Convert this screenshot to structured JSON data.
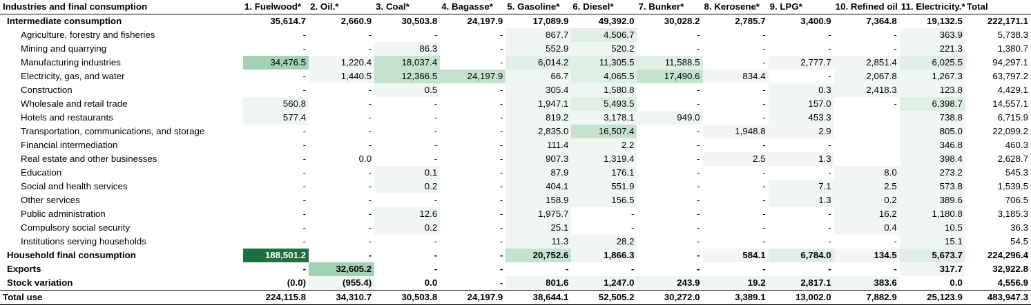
{
  "heat": {
    "max": 188501.2,
    "colors": [
      "#ffffff",
      "#f0f7f2",
      "#dfefe4",
      "#c4e2ce",
      "#a3d1b3",
      "#7fbd95",
      "#5aa878",
      "#37895a",
      "#1f7040"
    ]
  },
  "table": {
    "headers": [
      "Industries and final consumption",
      "1. Fuelwood*",
      "2. Oil.*",
      "3. Coal*",
      "4. Bagasse*",
      "5. Gasoline*",
      "6. Diesel*",
      "7. Bunker*",
      "8. Kerosene*",
      "9. LPG*",
      "10. Refined oil",
      "11. Electricity.*",
      "Total"
    ],
    "rows": [
      {
        "level": "main",
        "label": "Intermediate consumption",
        "cells": [
          "35,614.7",
          "2,660.9",
          "30,503.8",
          "24,197.9",
          "17,089.9",
          "49,392.0",
          "30,028.2",
          "2,785.7",
          "3,400.9",
          "7,364.8",
          "19,132.5",
          "222,171.1"
        ]
      },
      {
        "level": "sub",
        "label": "Agriculture, forestry and fisheries",
        "cells": [
          "-",
          "-",
          "-",
          "-",
          "867.7",
          "4,506.7",
          "-",
          "-",
          "-",
          "-",
          "363.9",
          "5,738.3"
        ]
      },
      {
        "level": "sub",
        "label": "Mining and quarrying",
        "cells": [
          "-",
          "-",
          "86.3",
          "-",
          "552.9",
          "520.2",
          "-",
          "-",
          "-",
          "-",
          "221.3",
          "1,380.7"
        ]
      },
      {
        "level": "sub",
        "label": "Manufacturing industries",
        "cells": [
          "34,476.5",
          "1,220.4",
          "18,037.4",
          "-",
          "6,014.2",
          "11,305.5",
          "11,588.5",
          "-",
          "2,777.7",
          "2,851.4",
          "6,025.5",
          "94,297.1"
        ]
      },
      {
        "level": "sub",
        "label": "Electricity, gas, and water",
        "cells": [
          "-",
          "1,440.5",
          "12,366.5",
          "24,197.9",
          "66.7",
          "4,065.5",
          "17,490.6",
          "834.4",
          "-",
          "2,067.8",
          "1,267.3",
          "63,797.2"
        ]
      },
      {
        "level": "sub",
        "label": "Construction",
        "cells": [
          "-",
          "-",
          "0.5",
          "-",
          "305.4",
          "1,580.8",
          "-",
          "-",
          "0.3",
          "2,418.3",
          "123.8",
          "4,429.1"
        ]
      },
      {
        "level": "sub",
        "label": "Wholesale and retail trade",
        "cells": [
          "560.8",
          "-",
          "-",
          "-",
          "1,947.1",
          "5,493.5",
          "-",
          "-",
          "157.0",
          "-",
          "6,398.7",
          "14,557.1"
        ]
      },
      {
        "level": "sub",
        "label": "Hotels and restaurants",
        "cells": [
          "577.4",
          "-",
          "-",
          "-",
          "819.2",
          "3,178.1",
          "949.0",
          "-",
          "453.3",
          "",
          "738.8",
          "6,715.9"
        ]
      },
      {
        "level": "sub",
        "label": "Transportation, communications, and storage",
        "cells": [
          "-",
          "-",
          "-",
          "-",
          "2,835.0",
          "16,507.4",
          "-",
          "1,948.8",
          "2.9",
          "",
          "805.0",
          "22,099.2"
        ]
      },
      {
        "level": "sub",
        "label": "Financial intermediation",
        "cells": [
          "-",
          "-",
          "-",
          "-",
          "111.4",
          "2.2",
          "-",
          "-",
          "-",
          "",
          "346.8",
          "460.3"
        ]
      },
      {
        "level": "sub",
        "label": "Real estate and other businesses",
        "cells": [
          "-",
          "0.0",
          "-",
          "-",
          "907.3",
          "1,319.4",
          "-",
          "2.5",
          "1.3",
          "",
          "398.4",
          "2,628.7"
        ]
      },
      {
        "level": "sub",
        "label": "Education",
        "cells": [
          "-",
          "-",
          "0.1",
          "-",
          "87.9",
          "176.1",
          "-",
          "-",
          "-",
          "8.0",
          "273.2",
          "545.3"
        ]
      },
      {
        "level": "sub",
        "label": "Social and health services",
        "cells": [
          "-",
          "-",
          "0.2",
          "-",
          "404.1",
          "551.9",
          "-",
          "-",
          "7.1",
          "2.5",
          "573.8",
          "1,539.5"
        ]
      },
      {
        "level": "sub",
        "label": "Other services",
        "cells": [
          "-",
          "-",
          "-",
          "-",
          "158.9",
          "156.5",
          "-",
          "-",
          "1.3",
          "0.2",
          "389.6",
          "706.5"
        ]
      },
      {
        "level": "sub",
        "label": "Public administration",
        "cells": [
          "-",
          "-",
          "12.6",
          "-",
          "1,975.7",
          "-",
          "-",
          "-",
          "-",
          "16.2",
          "1,180.8",
          "3,185.3"
        ]
      },
      {
        "level": "sub",
        "label": "Compulsory social security",
        "cells": [
          "-",
          "-",
          "0.2",
          "-",
          "25.1",
          "-",
          "-",
          "-",
          "-",
          "0.4",
          "10.5",
          "36.3"
        ]
      },
      {
        "level": "sub",
        "label": "Institutions serving households",
        "cells": [
          "-",
          "-",
          "-",
          "-",
          "11.3",
          "28.2",
          "-",
          "-",
          "-",
          "-",
          "15.1",
          "54.5"
        ]
      },
      {
        "level": "main",
        "label": "Household final consumption",
        "cells": [
          "188,501.2",
          "-",
          "-",
          "-",
          "20,752.6",
          "1,866.3",
          "-",
          "584.1",
          "6,784.0",
          "134.5",
          "5,673.7",
          "224,296.4"
        ]
      },
      {
        "level": "main",
        "label": "Exports",
        "cells": [
          "-",
          "32,605.2",
          "-",
          "-",
          "-",
          "-",
          "-",
          "-",
          "-",
          "-",
          "317.7",
          "32,922.8"
        ]
      },
      {
        "level": "main",
        "label": "Stock variation",
        "cells": [
          "(0.0)",
          "(955.4)",
          "0.0",
          "-",
          "801.6",
          "1,247.0",
          "243.9",
          "19.2",
          "2,817.1",
          "383.6",
          "0.0",
          "4,556.9"
        ]
      },
      {
        "level": "total",
        "label": "Total use",
        "cells": [
          "224,115.8",
          "34,310.7",
          "30,503.8",
          "24,197.9",
          "38,644.1",
          "52,505.2",
          "30,272.0",
          "3,389.1",
          "13,002.0",
          "7,882.9",
          "25,123.9",
          "483,947.3"
        ]
      }
    ]
  }
}
